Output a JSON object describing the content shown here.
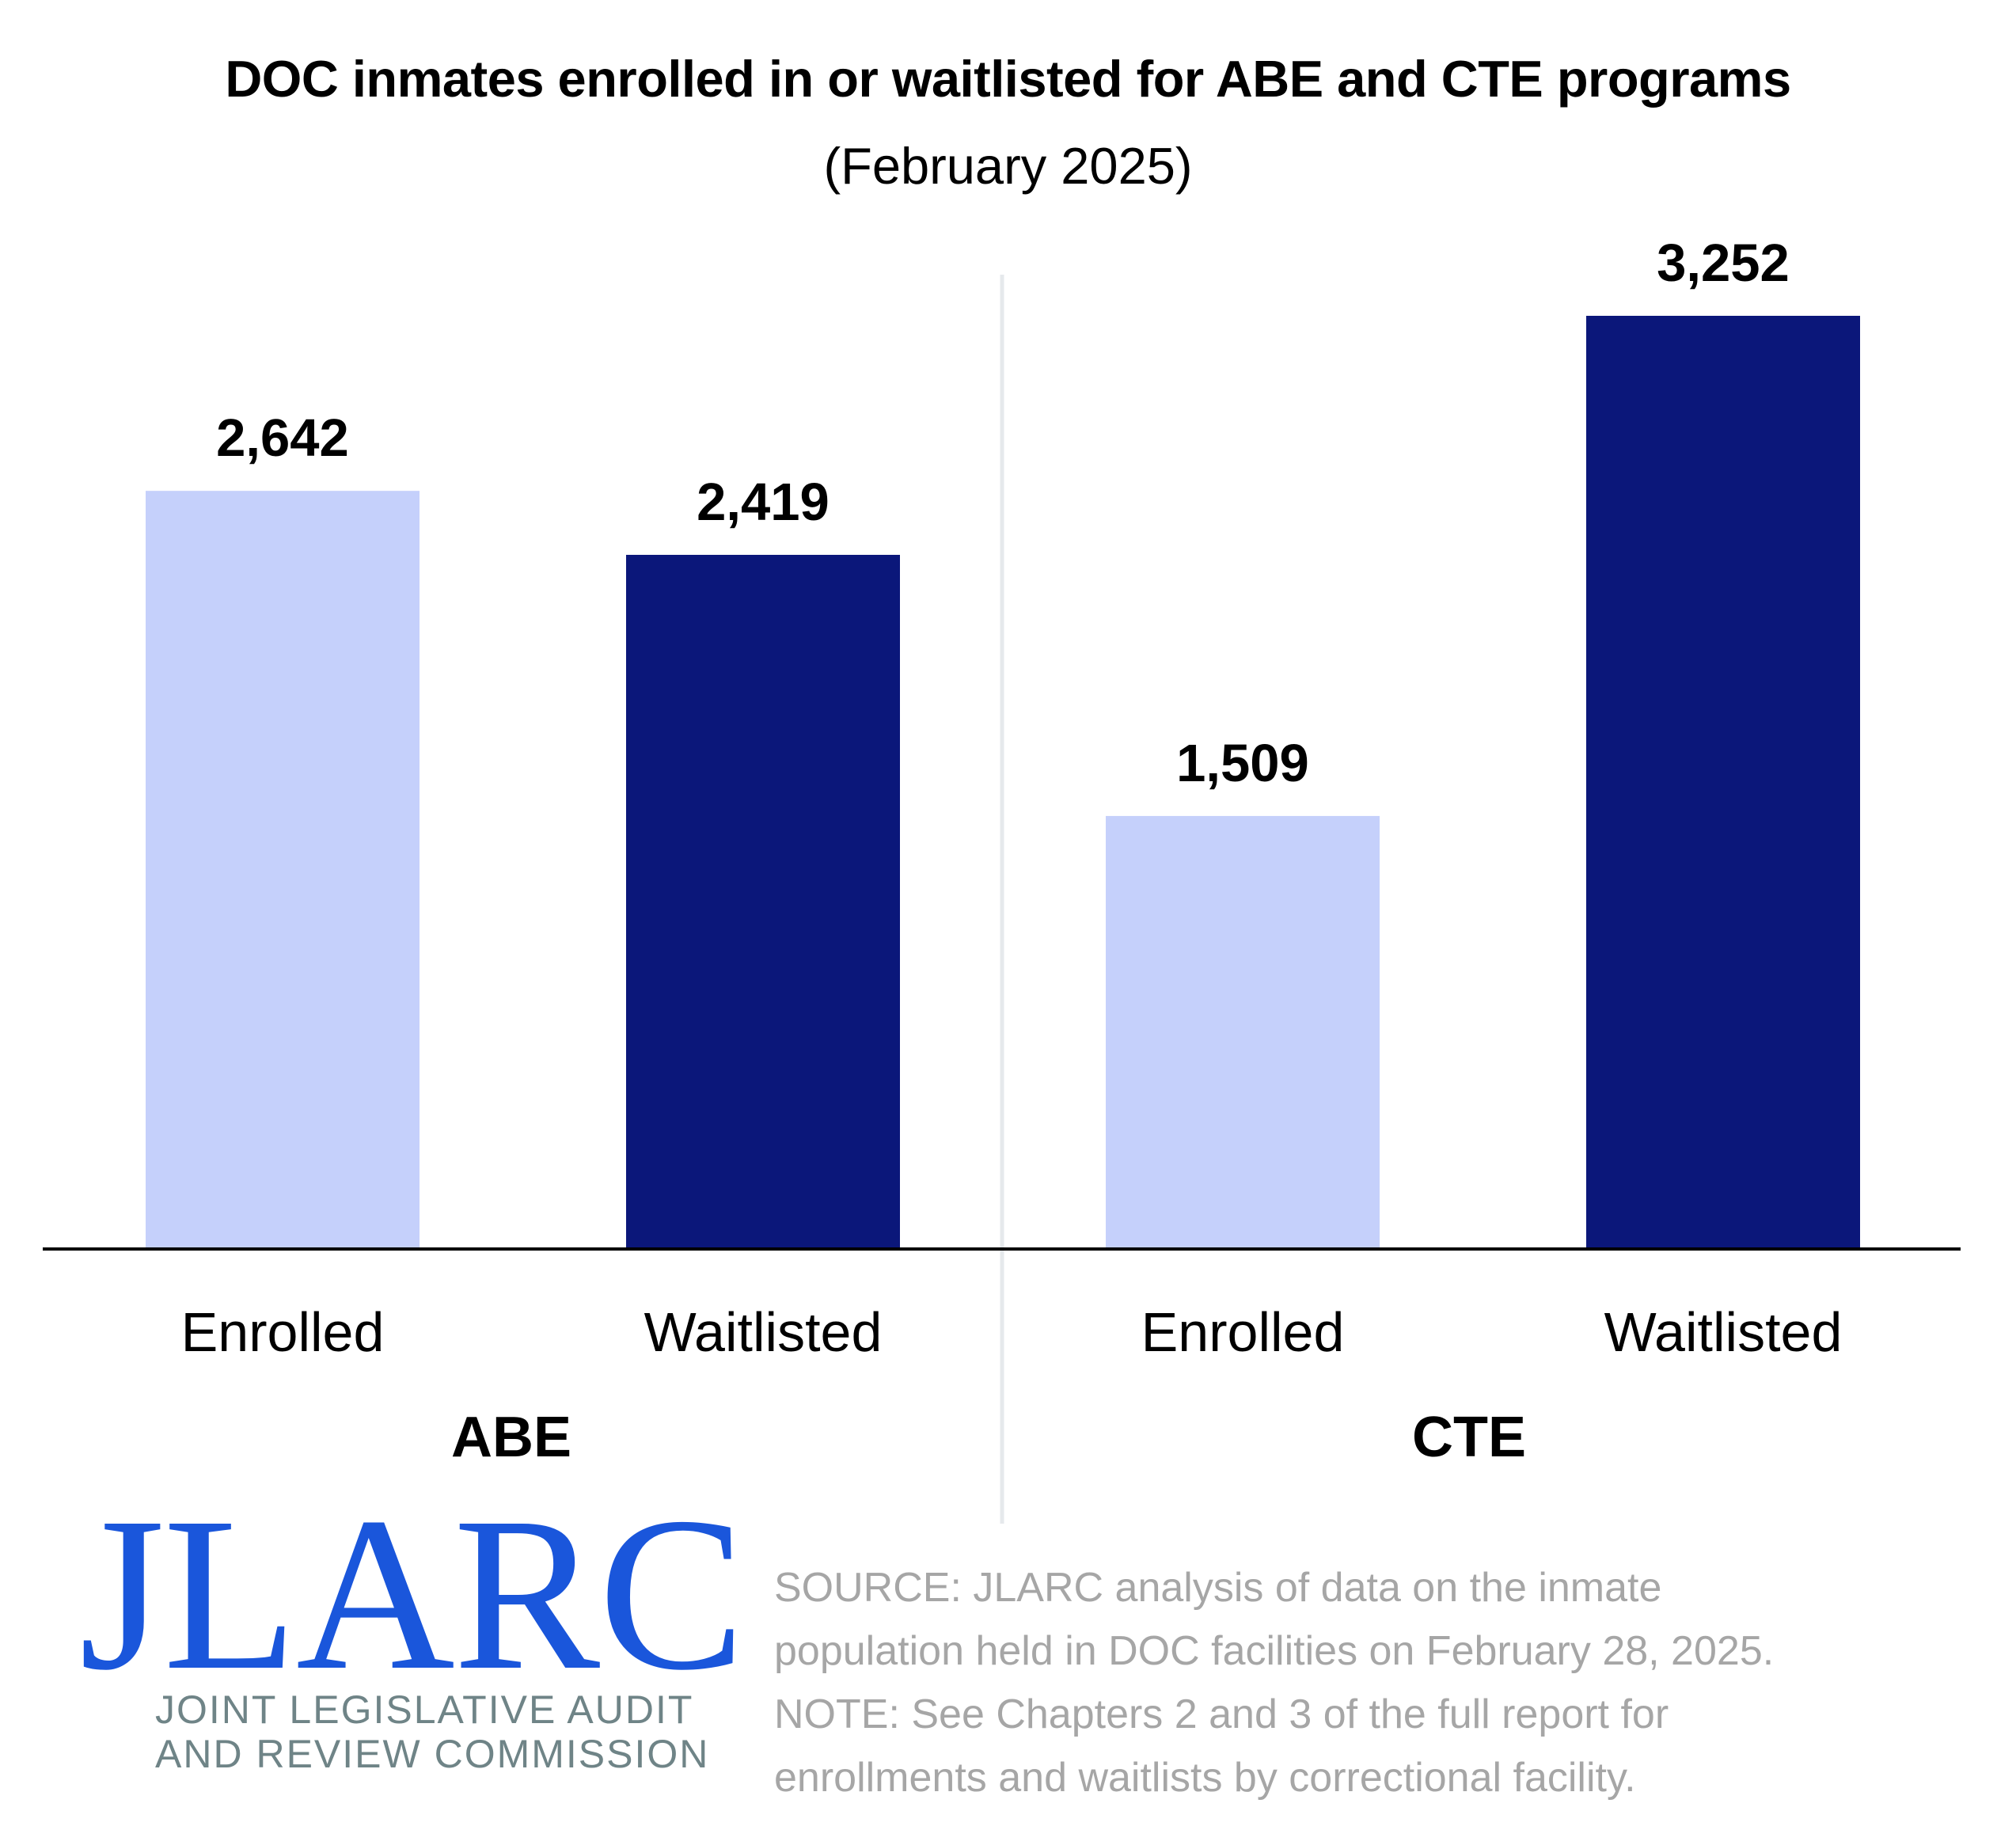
{
  "chart_data": {
    "type": "bar",
    "title": "DOC inmates enrolled in or waitlisted for ABE and CTE programs",
    "subtitle": "(February 2025)",
    "xlabel": "",
    "ylabel": "",
    "ylim": [
      0,
      3252
    ],
    "grid": false,
    "groups": [
      {
        "name": "ABE",
        "bars": [
          {
            "category": "Enrolled",
            "value": 2642,
            "label": "2,642"
          },
          {
            "category": "Waitlisted",
            "value": 2419,
            "label": "2,419"
          }
        ]
      },
      {
        "name": "CTE",
        "bars": [
          {
            "category": "Enrolled",
            "value": 1509,
            "label": "1,509"
          },
          {
            "category": "Waitlisted",
            "value": 3252,
            "label": "3,252"
          }
        ]
      }
    ],
    "colors": {
      "Enrolled": "#c5d0fb",
      "Waitlisted": "#0b177a"
    }
  },
  "logo": {
    "text": "JLARC",
    "line1": "JOINT LEGISLATIVE AUDIT",
    "line2": "AND REVIEW COMMISSION",
    "color": "#1a56db",
    "subtext_color": "#6f8487"
  },
  "notes": {
    "source_line1": "SOURCE: JLARC analysis of data on the inmate",
    "source_line2": "population held in DOC facilities on February 28, 2025.",
    "note_line1": "NOTE: See Chapters 2 and 3 of the full report for",
    "note_line2": "enrollments and waitlists by correctional facility."
  }
}
